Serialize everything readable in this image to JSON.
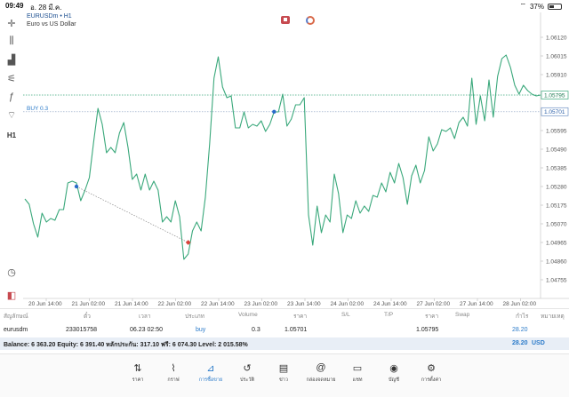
{
  "status_bar": {
    "time": "09:49",
    "date": "อ. 28 มี.ค.",
    "battery": "37%"
  },
  "toolbar": {
    "items": [
      {
        "name": "crosshair-icon",
        "glyph": "✛"
      },
      {
        "name": "candles-icon",
        "glyph": "⫼"
      },
      {
        "name": "chart-type-icon",
        "glyph": "▟"
      },
      {
        "name": "settings-sliders-icon",
        "glyph": "⚟"
      },
      {
        "name": "indicators-icon",
        "glyph": "ƒ"
      },
      {
        "name": "objects-icon",
        "glyph": "⌔"
      },
      {
        "name": "timeframe-button",
        "glyph": "H1"
      }
    ],
    "bottom": [
      {
        "name": "alarm-icon",
        "glyph": "◷"
      },
      {
        "name": "logo-icon",
        "glyph": "◧"
      }
    ]
  },
  "chart": {
    "symbol": "EURUSDm • H1",
    "description": "Euro vs US Dollar",
    "buy_label": "BUY 0.3",
    "current_price": "1.05795",
    "order_price": "1.05701",
    "colors": {
      "line": "#3aa87b",
      "buy_line": "#8aa0c0",
      "current_line": "#3aa87b",
      "entry_dot": "#2a6ac9",
      "exit_dot": "#d9413a"
    }
  },
  "chart_data": {
    "type": "line",
    "ylim": [
      1.0468,
      1.0619
    ],
    "y_ticks": [
      "1.06120",
      "1.06015",
      "1.05910",
      "1.05795",
      "1.05701",
      "1.05595",
      "1.05490",
      "1.05385",
      "1.05280",
      "1.05175",
      "1.05070",
      "1.04965",
      "1.04860",
      "1.04755"
    ],
    "x_ticks": [
      "20 Jun 14:00",
      "21 Jun 02:00",
      "21 Jun 14:00",
      "22 Jun 02:00",
      "22 Jun 14:00",
      "23 Jun 02:00",
      "23 Jun 14:00",
      "24 Jun 02:00",
      "24 Jun 14:00",
      "27 Jun 02:00",
      "27 Jun 14:00",
      "28 Jun 02:00"
    ],
    "x_range": [
      0,
      120
    ],
    "points": [
      [
        0,
        1.0521
      ],
      [
        1,
        1.0518
      ],
      [
        2,
        1.0507
      ],
      [
        3,
        1.04995
      ],
      [
        4,
        1.0513
      ],
      [
        5,
        1.0508
      ],
      [
        6,
        1.051
      ],
      [
        7,
        1.0509
      ],
      [
        8,
        1.0515
      ],
      [
        9,
        1.0515
      ],
      [
        10,
        1.053
      ],
      [
        11,
        1.0531
      ],
      [
        12,
        1.053
      ],
      [
        13,
        1.052
      ],
      [
        14,
        1.0526
      ],
      [
        15,
        1.0533
      ],
      [
        16,
        1.0553
      ],
      [
        17,
        1.0572
      ],
      [
        18,
        1.0563
      ],
      [
        19,
        1.0547
      ],
      [
        20,
        1.055
      ],
      [
        21,
        1.0547
      ],
      [
        22,
        1.0558
      ],
      [
        23,
        1.0564
      ],
      [
        24,
        1.055
      ],
      [
        25,
        1.0532
      ],
      [
        26,
        1.0535
      ],
      [
        27,
        1.0526
      ],
      [
        28,
        1.0535
      ],
      [
        29,
        1.0526
      ],
      [
        30,
        1.0531
      ],
      [
        31,
        1.0526
      ],
      [
        32,
        1.0508
      ],
      [
        33,
        1.0511
      ],
      [
        34,
        1.0508
      ],
      [
        35,
        1.052
      ],
      [
        36,
        1.0511
      ],
      [
        37,
        1.0487
      ],
      [
        38,
        1.049
      ],
      [
        39,
        1.0503
      ],
      [
        40,
        1.0508
      ],
      [
        41,
        1.0503
      ],
      [
        42,
        1.0522
      ],
      [
        43,
        1.0552
      ],
      [
        44,
        1.0589
      ],
      [
        45,
        1.0601
      ],
      [
        46,
        1.0584
      ],
      [
        47,
        1.0578
      ],
      [
        48,
        1.0579
      ],
      [
        49,
        1.0561
      ],
      [
        50,
        1.0561
      ],
      [
        51,
        1.057
      ],
      [
        52,
        1.0561
      ],
      [
        53,
        1.0563
      ],
      [
        54,
        1.0562
      ],
      [
        55,
        1.0565
      ],
      [
        56,
        1.0559
      ],
      [
        57,
        1.0563
      ],
      [
        58,
        1.057
      ],
      [
        59,
        1.057
      ],
      [
        60,
        1.058
      ],
      [
        61,
        1.0562
      ],
      [
        62,
        1.0566
      ],
      [
        63,
        1.0574
      ],
      [
        64,
        1.0574
      ],
      [
        65,
        1.0578
      ],
      [
        66,
        1.0512
      ],
      [
        67,
        1.0495
      ],
      [
        68,
        1.0517
      ],
      [
        69,
        1.0502
      ],
      [
        70,
        1.0512
      ],
      [
        71,
        1.0508
      ],
      [
        72,
        1.0535
      ],
      [
        73,
        1.0524
      ],
      [
        74,
        1.0502
      ],
      [
        75,
        1.0512
      ],
      [
        76,
        1.051
      ],
      [
        77,
        1.052
      ],
      [
        78,
        1.0513
      ],
      [
        79,
        1.0517
      ],
      [
        80,
        1.0514
      ],
      [
        81,
        1.0523
      ],
      [
        82,
        1.0522
      ],
      [
        83,
        1.053
      ],
      [
        84,
        1.0525
      ],
      [
        85,
        1.0536
      ],
      [
        86,
        1.053
      ],
      [
        87,
        1.0541
      ],
      [
        88,
        1.0533
      ],
      [
        89,
        1.0518
      ],
      [
        90,
        1.0534
      ],
      [
        91,
        1.054
      ],
      [
        92,
        1.053
      ],
      [
        93,
        1.0537
      ],
      [
        94,
        1.0556
      ],
      [
        95,
        1.0548
      ],
      [
        96,
        1.0552
      ],
      [
        97,
        1.056
      ],
      [
        98,
        1.0559
      ],
      [
        99,
        1.0561
      ],
      [
        100,
        1.0555
      ],
      [
        101,
        1.0564
      ],
      [
        102,
        1.0567
      ],
      [
        103,
        1.0562
      ],
      [
        104,
        1.0589
      ],
      [
        105,
        1.0563
      ],
      [
        106,
        1.0579
      ],
      [
        107,
        1.0565
      ],
      [
        108,
        1.0588
      ],
      [
        109,
        1.0567
      ],
      [
        110,
        1.059
      ],
      [
        111,
        1.06
      ],
      [
        112,
        1.0602
      ],
      [
        113,
        1.0595
      ],
      [
        114,
        1.0585
      ],
      [
        115,
        1.058
      ],
      [
        116,
        1.0585
      ],
      [
        117,
        1.0582
      ],
      [
        118,
        1.058
      ],
      [
        119,
        1.0579
      ],
      [
        120,
        1.05795
      ]
    ],
    "buy_level": 1.05701,
    "current_level": 1.05795,
    "entry_marker": [
      12,
      1.0528
    ],
    "exit_marker": [
      38,
      1.04965
    ],
    "second_entry_marker": [
      58,
      1.05701
    ],
    "grid": false
  },
  "positions_table": {
    "headers": [
      "สัญลักษณ์",
      "ตั๋ว",
      "เวลา",
      "ประเภท",
      "Volume",
      "ราคา",
      "S/L",
      "T/P",
      "ราคา",
      "Swap",
      "กำไร",
      "หมายเหตุ"
    ],
    "row": {
      "symbol": "eurusdm",
      "ticket": "233015758",
      "time": "06.23 02:50",
      "type": "buy",
      "volume": "0.3",
      "open_price": "1.05701",
      "sl": "",
      "tp": "",
      "price": "1.05795",
      "swap": "",
      "profit": "28.20",
      "comment": ""
    }
  },
  "balance_bar": {
    "text": "Balance: 6 363.20 Equity: 6 391.40 หลักประกัน: 317.10 ฟรี: 6 074.30 Level: 2 015.58%",
    "profit": "28.20",
    "currency": "USD"
  },
  "bottom_nav": [
    {
      "name": "nav-quotes",
      "icon": "quotes-icon",
      "glyph": "⇅",
      "label": "ราคา"
    },
    {
      "name": "nav-chart",
      "icon": "chart-icon",
      "glyph": "⌇",
      "label": "กราฟ"
    },
    {
      "name": "nav-trade",
      "icon": "trade-icon",
      "glyph": "⊿",
      "label": "การซื้อขาย",
      "active": true
    },
    {
      "name": "nav-history",
      "icon": "history-icon",
      "glyph": "↺",
      "label": "ประวัติ"
    },
    {
      "name": "nav-news",
      "icon": "news-icon",
      "glyph": "▤",
      "label": "ข่าว"
    },
    {
      "name": "nav-mailbox",
      "icon": "mailbox-icon",
      "glyph": "@",
      "label": "กล่องจดหมาย"
    },
    {
      "name": "nav-chat",
      "icon": "chat-icon",
      "glyph": "▭",
      "label": "แชท"
    },
    {
      "name": "nav-account",
      "icon": "account-icon",
      "glyph": "◉",
      "label": "บัญชี"
    },
    {
      "name": "nav-settings",
      "icon": "settings-icon",
      "glyph": "⚙",
      "label": "การตั้งค่า"
    }
  ]
}
